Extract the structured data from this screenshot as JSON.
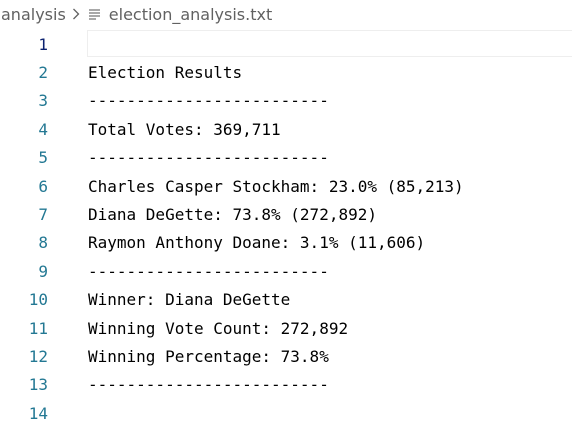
{
  "breadcrumb": {
    "folder": "analysis",
    "separator_icon": "chevron-right-icon",
    "file_icon": "text-file-icon",
    "file": "election_analysis.txt"
  },
  "colors": {
    "line_number": "#237893",
    "active_line_number": "#0b216f",
    "text": "#000000",
    "breadcrumb_text": "#616161"
  },
  "editor": {
    "active_line": 1,
    "lines": [
      {
        "number": "1",
        "text": ""
      },
      {
        "number": "2",
        "text": "Election Results"
      },
      {
        "number": "3",
        "text": "-------------------------"
      },
      {
        "number": "4",
        "text": "Total Votes: 369,711"
      },
      {
        "number": "5",
        "text": "-------------------------"
      },
      {
        "number": "6",
        "text": "Charles Casper Stockham: 23.0% (85,213)"
      },
      {
        "number": "7",
        "text": "Diana DeGette: 73.8% (272,892)"
      },
      {
        "number": "8",
        "text": "Raymon Anthony Doane: 3.1% (11,606)"
      },
      {
        "number": "9",
        "text": "-------------------------"
      },
      {
        "number": "10",
        "text": "Winner: Diana DeGette"
      },
      {
        "number": "11",
        "text": "Winning Vote Count: 272,892"
      },
      {
        "number": "12",
        "text": "Winning Percentage: 73.8%"
      },
      {
        "number": "13",
        "text": "-------------------------"
      },
      {
        "number": "14",
        "text": ""
      }
    ]
  }
}
